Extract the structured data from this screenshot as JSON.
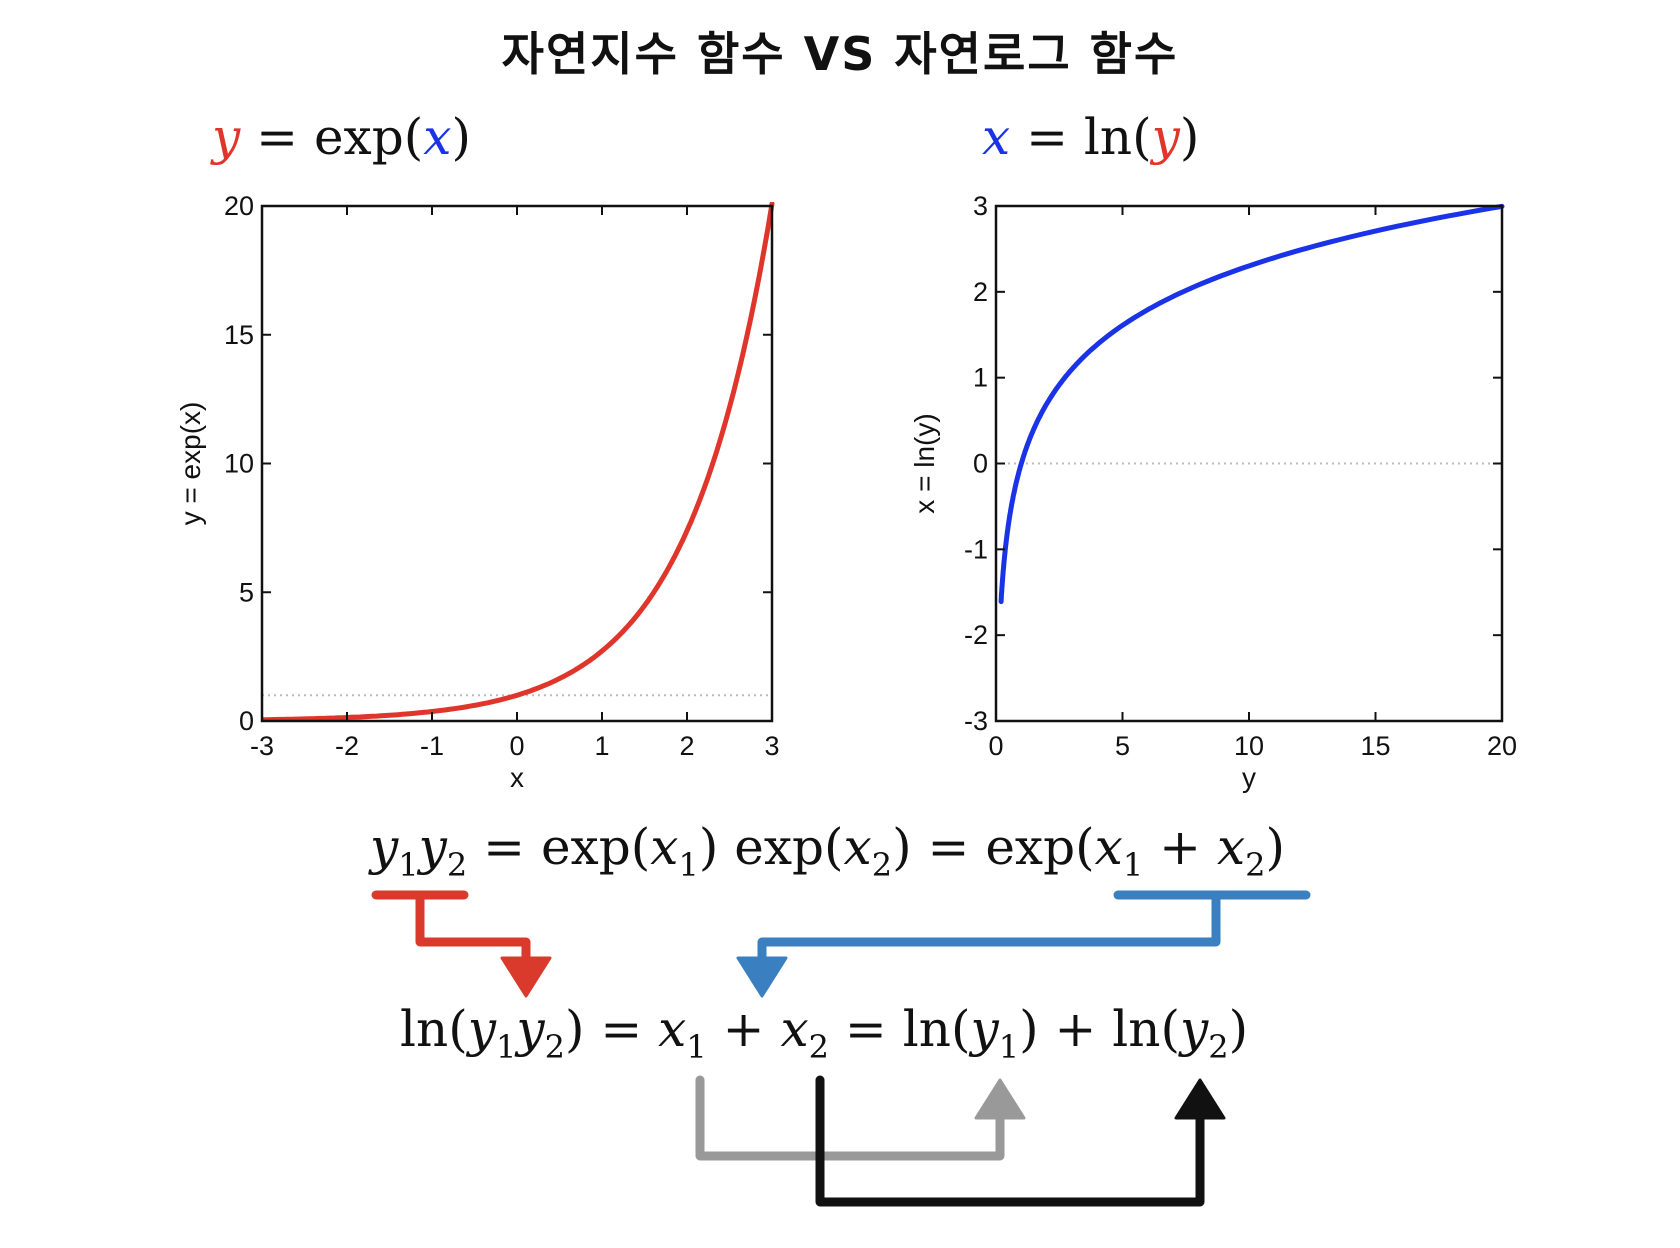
{
  "title": "자연지수 함수 VS 자연로그 함수",
  "formulas": {
    "left": {
      "y": "y",
      "eq": "=",
      "fn": "exp",
      "lp": "(",
      "x": "x",
      "rp": ")"
    },
    "right": {
      "x": "x",
      "eq": "=",
      "fn": "ln",
      "lp": "(",
      "y": "y",
      "rp": ")"
    }
  },
  "colors": {
    "exp_curve": "#e0352b",
    "ln_curve": "#1a33e6",
    "red_arrow": "#d93a2b",
    "blue_arrow": "#3a7fbf",
    "gray_arrow": "#999999",
    "black_arrow": "#111111"
  },
  "identities": {
    "top": {
      "y1": "y",
      "s1": "1",
      "y2": "y",
      "s2": "2",
      "eq1": "=",
      "exp1": "exp",
      "lp1": "(",
      "x1": "x",
      "s3": "1",
      "rp1": ")",
      "exp2": "exp",
      "lp2": "(",
      "x2": "x",
      "s4": "2",
      "rp2": ")",
      "eq2": "=",
      "exp3": "exp",
      "lp3": "(",
      "x3": "x",
      "s5": "1",
      "plus": "+",
      "x4": "x",
      "s6": "2",
      "rp3": ")"
    },
    "bottom": {
      "ln1": "ln",
      "lp1": "(",
      "y1": "y",
      "s1": "1",
      "y2": "y",
      "s2": "2",
      "rp1": ")",
      "eq1": "=",
      "x1": "x",
      "s3": "1",
      "plus1": "+",
      "x2": "x",
      "s4": "2",
      "eq2": "=",
      "ln2": "ln",
      "lp2": "(",
      "y3": "y",
      "s5": "1",
      "rp2": ")",
      "plus2": "+",
      "ln3": "ln",
      "lp3": "(",
      "y4": "y",
      "s6": "2",
      "rp3": ")"
    }
  },
  "chart_data": [
    {
      "type": "line",
      "function": "exp",
      "xlabel": "x",
      "ylabel": "y = exp(x)",
      "xlim": [
        -3,
        3
      ],
      "ylim": [
        0,
        20
      ],
      "xticks": [
        -3,
        -2,
        -1,
        0,
        1,
        2,
        3
      ],
      "yticks": [
        0,
        5,
        10,
        15,
        20
      ],
      "reference_line": {
        "axis": "y",
        "value": 1,
        "style": "dotted"
      },
      "series": [
        {
          "x": [
            -3,
            -2.5,
            -2,
            -1.5,
            -1,
            -0.5,
            0,
            0.5,
            1,
            1.5,
            2,
            2.25,
            2.5,
            2.75,
            3
          ],
          "y": [
            0.05,
            0.08,
            0.14,
            0.22,
            0.37,
            0.61,
            1.0,
            1.65,
            2.72,
            4.48,
            7.39,
            9.49,
            12.18,
            15.64,
            20.09
          ]
        }
      ]
    },
    {
      "type": "line",
      "function": "ln",
      "xlabel": "y",
      "ylabel": "x = ln(y)",
      "xlim": [
        0,
        20
      ],
      "ylim": [
        -3,
        3
      ],
      "xticks": [
        0,
        5,
        10,
        15,
        20
      ],
      "yticks": [
        -3,
        -2,
        -1,
        0,
        1,
        2,
        3
      ],
      "reference_line": {
        "axis": "y",
        "value": 0,
        "style": "dotted"
      },
      "series": [
        {
          "x": [
            0.2,
            0.3,
            0.5,
            0.75,
            1,
            1.5,
            2,
            3,
            4,
            5,
            6,
            8,
            10,
            12,
            14,
            16,
            18,
            20
          ],
          "y": [
            -1.61,
            -1.2,
            -0.69,
            -0.29,
            0,
            0.41,
            0.69,
            1.1,
            1.39,
            1.61,
            1.79,
            2.08,
            2.3,
            2.48,
            2.64,
            2.77,
            2.89,
            3.0
          ]
        }
      ]
    }
  ]
}
